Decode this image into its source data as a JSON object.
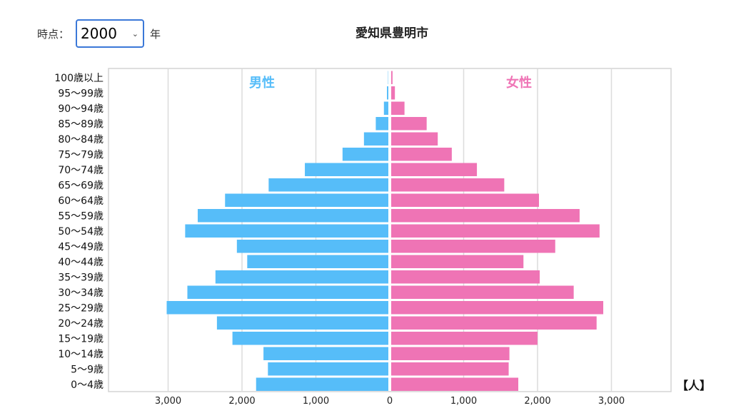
{
  "controls": {
    "time_label": "時点：",
    "selected_year": "2000",
    "year_unit": "年"
  },
  "chart_data": {
    "type": "bar",
    "orientation": "horizontal",
    "layout": "population-pyramid",
    "title": "愛知県豊明市",
    "unit": "【人】",
    "categories": [
      "100歳以上",
      "95〜99歳",
      "90〜94歳",
      "85〜89歳",
      "80〜84歳",
      "75〜79歳",
      "70〜74歳",
      "65〜69歳",
      "60〜64歳",
      "55〜59歳",
      "50〜54歳",
      "45〜49歳",
      "40〜44歳",
      "35〜39歳",
      "30〜34歳",
      "25〜29歳",
      "20〜24歳",
      "15〜19歳",
      "10〜14歳",
      "5〜9歳",
      "0〜4歳"
    ],
    "series": [
      {
        "name": "男性",
        "color": "#56bdf9",
        "values": [
          4,
          19,
          60,
          170,
          330,
          620,
          1130,
          1620,
          2210,
          2580,
          2750,
          2050,
          1910,
          2340,
          2720,
          3000,
          2320,
          2110,
          1690,
          1630,
          1790
        ]
      },
      {
        "name": "女性",
        "color": "#ef74b5",
        "values": [
          18,
          50,
          180,
          480,
          630,
          820,
          1160,
          1530,
          2000,
          2550,
          2820,
          2220,
          1790,
          2010,
          2470,
          2870,
          2780,
          1980,
          1600,
          1590,
          1720
        ]
      }
    ],
    "xlim": [
      -3800,
      3800
    ],
    "xticks": [
      -3000,
      -2000,
      -1000,
      0,
      1000,
      2000,
      3000
    ],
    "xtick_labels": [
      "3,000",
      "2,000",
      "1,000",
      "0",
      "1,000",
      "2,000",
      "3,000"
    ],
    "grid": true
  }
}
